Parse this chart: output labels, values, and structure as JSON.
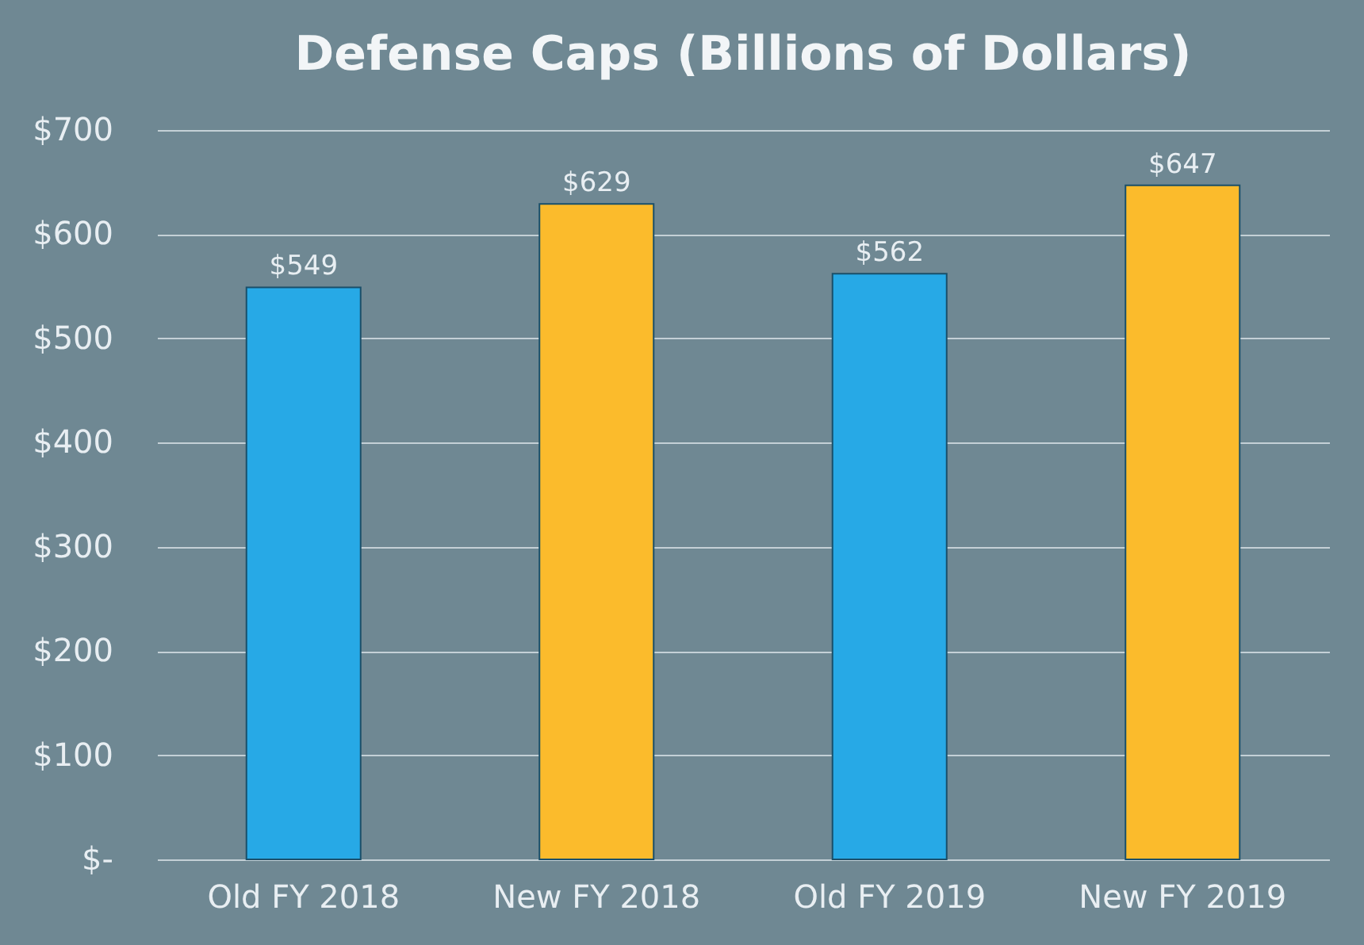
{
  "chart_data": {
    "type": "bar",
    "title": "Defense Caps (Billions of Dollars)",
    "categories": [
      "Old FY 2018",
      "New FY 2018",
      "Old FY 2019",
      "New FY 2019"
    ],
    "values": [
      549,
      629,
      562,
      647
    ],
    "colors": [
      "#27a9e6",
      "#fbbb2c",
      "#27a9e6",
      "#fbbb2c"
    ],
    "value_labels": [
      "$549",
      "$629",
      "$562",
      "$647"
    ],
    "ylim": [
      0,
      700
    ],
    "yticks": [
      {
        "value": 0,
        "label": "$-"
      },
      {
        "value": 100,
        "label": "$100"
      },
      {
        "value": 200,
        "label": "$200"
      },
      {
        "value": 300,
        "label": "$300"
      },
      {
        "value": 400,
        "label": "$400"
      },
      {
        "value": 500,
        "label": "$500"
      },
      {
        "value": 600,
        "label": "$600"
      },
      {
        "value": 700,
        "label": "$700"
      }
    ],
    "grid": "y"
  }
}
